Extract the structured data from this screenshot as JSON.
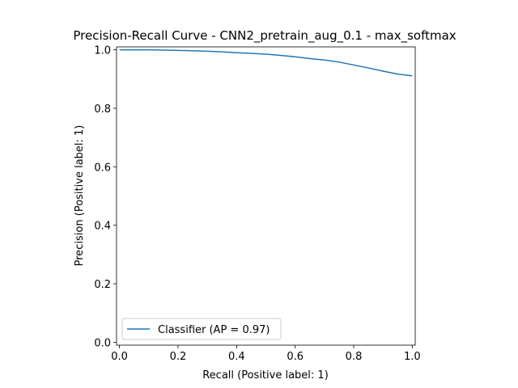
{
  "chart_data": {
    "type": "line",
    "title": "Precision-Recall Curve - CNN2_pretrain_aug_0.1 - max_softmax",
    "xlabel": "Recall (Positive label: 1)",
    "ylabel": "Precision (Positive label: 1)",
    "xlim": [
      -0.01,
      1.01
    ],
    "ylim": [
      -0.01,
      1.01
    ],
    "xticks": [
      0.0,
      0.2,
      0.4,
      0.6,
      0.8,
      1.0
    ],
    "yticks": [
      0.0,
      0.2,
      0.4,
      0.6,
      0.8,
      1.0
    ],
    "xtick_labels": [
      "0.0",
      "0.2",
      "0.4",
      "0.6",
      "0.8",
      "1.0"
    ],
    "ytick_labels": [
      "0.0",
      "0.2",
      "0.4",
      "0.6",
      "0.8",
      "1.0"
    ],
    "grid": false,
    "legend_position": "lower-left",
    "series": [
      {
        "name": "Classifier (AP = 0.97)",
        "color": "#1f77b4",
        "x": [
          0.0,
          0.05,
          0.1,
          0.15,
          0.2,
          0.25,
          0.3,
          0.35,
          0.4,
          0.45,
          0.5,
          0.55,
          0.6,
          0.65,
          0.7,
          0.75,
          0.8,
          0.85,
          0.9,
          0.95,
          1.0
        ],
        "y": [
          1.0,
          1.0,
          1.0,
          0.999,
          0.998,
          0.997,
          0.995,
          0.993,
          0.99,
          0.988,
          0.985,
          0.981,
          0.976,
          0.97,
          0.965,
          0.958,
          0.948,
          0.938,
          0.927,
          0.917,
          0.911
        ]
      }
    ]
  }
}
